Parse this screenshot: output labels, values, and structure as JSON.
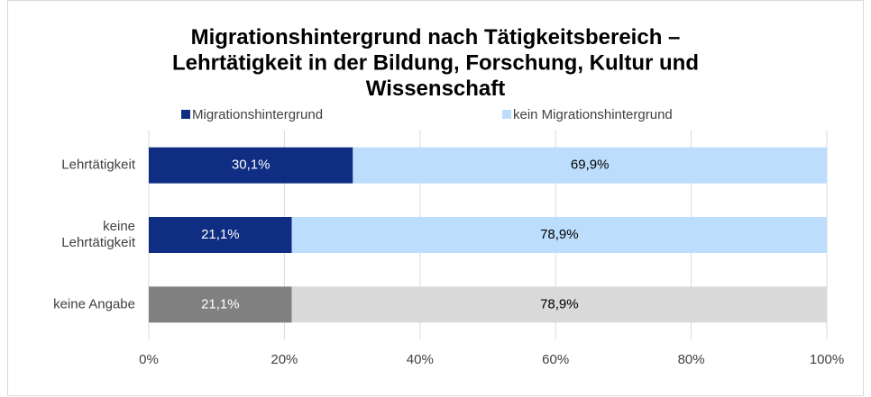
{
  "chart_data": {
    "type": "stacked_barh",
    "title": "Migrationshintergrund nach Tätigkeitsbereich – Lehrtätigkeit in der Bildung, Forschung, Kultur und Wissenschaft",
    "categories": [
      "Lehrtätigkeit",
      "keine Lehrtätigkeit",
      "keine Angabe"
    ],
    "series": [
      {
        "name": "Migrationshintergrund",
        "color": "#0f2d82",
        "colors": [
          "#0f2d82",
          "#0f2d82",
          "#808080"
        ],
        "label_color": "#ffffff",
        "values": [
          30.1,
          21.1,
          21.1
        ],
        "value_labels": [
          "30,1%",
          "21,1%",
          "21,1%"
        ]
      },
      {
        "name": "kein Migrationshintergrund",
        "color": "#bdddfd",
        "colors": [
          "#bdddfd",
          "#bdddfd",
          "#d9d9d9"
        ],
        "label_color": "#000000",
        "values": [
          69.9,
          78.9,
          78.9
        ],
        "value_labels": [
          "69,9%",
          "78,9%",
          "78,9%"
        ]
      }
    ],
    "xlim": [
      0,
      100
    ],
    "xticks": [
      {
        "value": 0,
        "label": "0%"
      },
      {
        "value": 20,
        "label": "20%"
      },
      {
        "value": 40,
        "label": "40%"
      },
      {
        "value": 60,
        "label": "60%"
      },
      {
        "value": 80,
        "label": "80%"
      },
      {
        "value": 100,
        "label": "100%"
      }
    ],
    "grid": true,
    "legend": "top"
  }
}
